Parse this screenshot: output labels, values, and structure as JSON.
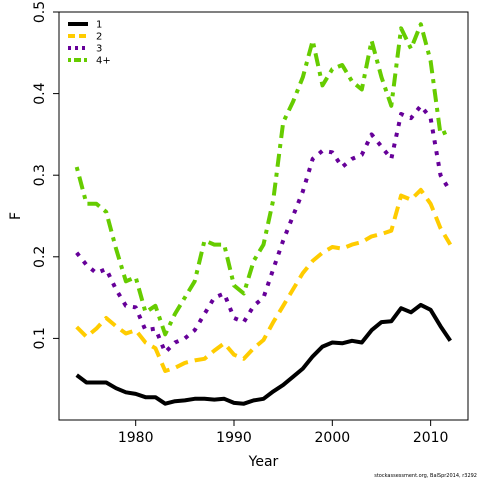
{
  "chart_data": {
    "type": "line",
    "title": "",
    "xlabel": "Year",
    "ylabel": "F",
    "xlim": [
      1972.2,
      2013.8
    ],
    "ylim": [
      0.0,
      0.5
    ],
    "x_ticks": [
      1980,
      1990,
      2000,
      2010
    ],
    "y_ticks": [
      0.1,
      0.2,
      0.3,
      0.4,
      0.5
    ],
    "grid": false,
    "legend_position": "top-left",
    "x": [
      1974,
      1975,
      1976,
      1977,
      1978,
      1979,
      1980,
      1981,
      1982,
      1983,
      1984,
      1985,
      1986,
      1987,
      1988,
      1989,
      1990,
      1991,
      1992,
      1993,
      1994,
      1995,
      1996,
      1997,
      1998,
      1999,
      2000,
      2001,
      2002,
      2003,
      2004,
      2005,
      2006,
      2007,
      2008,
      2009,
      2010,
      2011,
      2012
    ],
    "series": [
      {
        "name": "1",
        "color": "#000000",
        "dash": "solid",
        "width": 4,
        "values": [
          0.055,
          0.046,
          0.046,
          0.046,
          0.039,
          0.034,
          0.032,
          0.028,
          0.028,
          0.02,
          0.023,
          0.024,
          0.026,
          0.026,
          0.025,
          0.026,
          0.021,
          0.02,
          0.024,
          0.026,
          0.035,
          0.043,
          0.053,
          0.063,
          0.078,
          0.09,
          0.095,
          0.094,
          0.097,
          0.095,
          0.11,
          0.12,
          0.121,
          0.137,
          0.132,
          0.141,
          0.135,
          0.115,
          0.097
        ]
      },
      {
        "name": "2",
        "color": "#ffcc00",
        "dash": "dashed",
        "width": 4,
        "values": [
          0.114,
          0.102,
          0.112,
          0.125,
          0.115,
          0.106,
          0.11,
          0.095,
          0.088,
          0.06,
          0.064,
          0.07,
          0.073,
          0.075,
          0.085,
          0.094,
          0.08,
          0.075,
          0.088,
          0.098,
          0.12,
          0.14,
          0.16,
          0.18,
          0.195,
          0.205,
          0.212,
          0.21,
          0.215,
          0.218,
          0.225,
          0.228,
          0.232,
          0.275,
          0.27,
          0.282,
          0.265,
          0.235,
          0.215
        ]
      },
      {
        "name": "3",
        "color": "#660099",
        "dash": "dotted",
        "width": 4,
        "values": [
          0.205,
          0.19,
          0.18,
          0.185,
          0.16,
          0.14,
          0.138,
          0.11,
          0.112,
          0.083,
          0.095,
          0.1,
          0.11,
          0.13,
          0.15,
          0.155,
          0.125,
          0.12,
          0.14,
          0.15,
          0.185,
          0.22,
          0.25,
          0.28,
          0.32,
          0.33,
          0.328,
          0.31,
          0.32,
          0.325,
          0.35,
          0.335,
          0.32,
          0.375,
          0.37,
          0.385,
          0.37,
          0.3,
          0.28
        ]
      },
      {
        "name": "4+",
        "color": "#66cc00",
        "dash": "dashdot",
        "width": 4,
        "values": [
          0.31,
          0.265,
          0.265,
          0.255,
          0.21,
          0.17,
          0.175,
          0.132,
          0.14,
          0.105,
          0.13,
          0.15,
          0.17,
          0.22,
          0.215,
          0.215,
          0.165,
          0.155,
          0.195,
          0.215,
          0.27,
          0.365,
          0.39,
          0.42,
          0.465,
          0.41,
          0.43,
          0.435,
          0.415,
          0.405,
          0.465,
          0.42,
          0.385,
          0.48,
          0.455,
          0.485,
          0.44,
          0.35,
          0.355
        ]
      }
    ]
  },
  "credit": "stockassessment.org, BalSpr2014, r3292"
}
